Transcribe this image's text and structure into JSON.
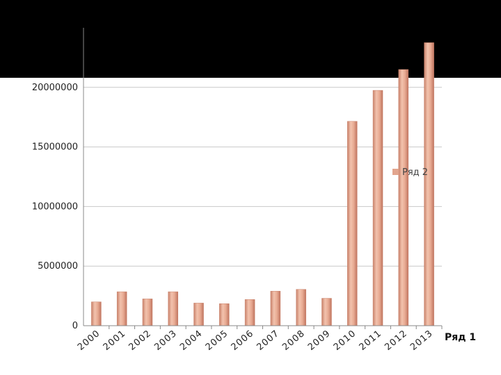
{
  "chart_data": {
    "type": "bar",
    "categories": [
      "2000",
      "2001",
      "2002",
      "2003",
      "2004",
      "2005",
      "2006",
      "2007",
      "2008",
      "2009",
      "2010",
      "2011",
      "2012",
      "2013"
    ],
    "series": [
      {
        "name": "Ряд 2",
        "values": [
          2000000,
          2850000,
          2250000,
          2850000,
          1900000,
          1850000,
          2200000,
          2900000,
          3050000,
          2300000,
          17150000,
          19750000,
          21500000,
          23750000
        ]
      }
    ],
    "yticks": [
      "0",
      "5000000",
      "10000000",
      "15000000",
      "20000000"
    ],
    "ylim": [
      0,
      25000000
    ],
    "grid": true,
    "legend": "right",
    "legend_label": "Ряд 2",
    "xaxis_title": "Ряд 1",
    "colors": {
      "bar": "#e2a58e",
      "bar_edge": "#c9826b",
      "header_band": "#000000",
      "grid": "#c8c8c8"
    }
  }
}
